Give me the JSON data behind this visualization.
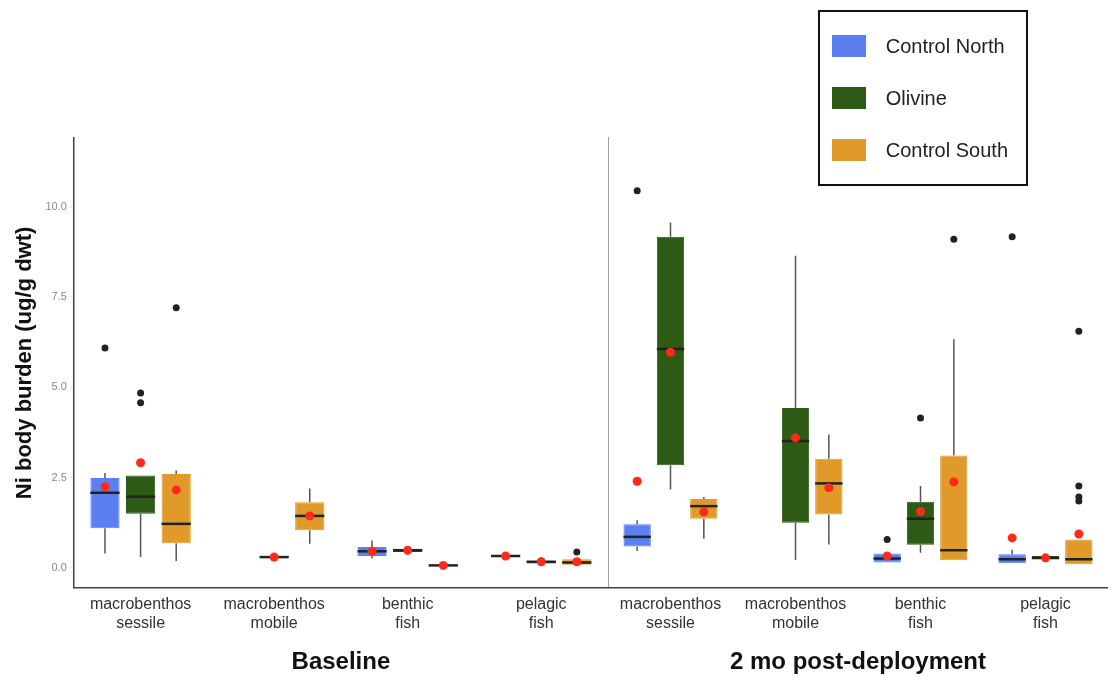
{
  "chart_data": [
    {
      "type": "box",
      "xlabel": "Baseline",
      "ylabel": "Ni body burden (ug/g dwt)",
      "categories": [
        "macrobenthos sessile",
        "macrobenthos mobile",
        "benthic fish",
        "pelagic fish"
      ],
      "ylim": [
        -0.55,
        11.9
      ],
      "yticks": [
        {
          "value": 0,
          "label": "0.0"
        },
        2.5,
        {
          "value": 5,
          "label": "5.0"
        },
        7.5,
        {
          "value": 10,
          "label": "10.0"
        }
      ],
      "grid": false,
      "series": [
        {
          "color": "#5b7ff0",
          "boxes": [
            {
              "low": 0.4,
              "q1": 1.1,
              "median": 2.08,
              "q3": 2.49,
              "high": 2.63,
              "mean": 2.25,
              "outliers": [
                6.09
              ]
            },
            null,
            {
              "low": 0.26,
              "q1": 0.33,
              "median": 0.46,
              "q3": 0.58,
              "high": 0.76,
              "mean": 0.46
            },
            {
              "low": 0.3,
              "q1": 0.3,
              "median": 0.33,
              "q3": 0.35,
              "high": 0.36,
              "mean": 0.33
            }
          ]
        },
        {
          "color": "#2d5a14",
          "boxes": [
            {
              "low": 0.3,
              "q1": 1.5,
              "median": 1.97,
              "q3": 2.56,
              "high": 2.56,
              "mean": 2.91,
              "outliers": [
                4.84,
                4.57
              ]
            },
            {
              "low": 0.3,
              "q1": 0.3,
              "median": 0.3,
              "q3": 0.31,
              "high": 0.31,
              "mean": 0.3
            },
            {
              "low": 0.44,
              "q1": 0.44,
              "median": 0.49,
              "q3": 0.53,
              "high": 0.53,
              "mean": 0.49
            },
            {
              "low": 0.12,
              "q1": 0.12,
              "median": 0.17,
              "q3": 0.2,
              "high": 0.3,
              "mean": 0.17
            }
          ]
        },
        {
          "color": "#e09a2a",
          "boxes": [
            {
              "low": 0.19,
              "q1": 0.68,
              "median": 1.22,
              "q3": 2.6,
              "high": 2.7,
              "mean": 2.16,
              "outliers": [
                7.2
              ]
            },
            {
              "low": 0.67,
              "q1": 1.04,
              "median": 1.44,
              "q3": 1.82,
              "high": 2.2,
              "mean": 1.44
            },
            {
              "low": 0.05,
              "q1": 0.05,
              "median": 0.07,
              "q3": 0.08,
              "high": 0.08,
              "mean": 0.07
            },
            {
              "low": 0.09,
              "q1": 0.09,
              "median": 0.15,
              "q3": 0.24,
              "high": 0.24,
              "mean": 0.17,
              "outliers": [
                0.44
              ]
            }
          ]
        }
      ]
    },
    {
      "type": "box",
      "xlabel": "2 mo post-deployment",
      "categories": [
        "macrobenthos sessile",
        "macrobenthos mobile",
        "benthic fish",
        "pelagic fish"
      ],
      "ylim": [
        -0.55,
        11.9
      ],
      "tick_labels": "x",
      "grid": false,
      "legend": "top right",
      "series": [
        {
          "name": "Control North",
          "color": "#5b7ff0",
          "boxes": [
            {
              "low": 0.47,
              "q1": 0.59,
              "median": 0.86,
              "q3": 1.21,
              "high": 1.32,
              "mean": 2.4,
              "outliers": [
                10.44
              ]
            },
            null,
            {
              "low": 0.15,
              "q1": 0.15,
              "median": 0.26,
              "q3": 0.4,
              "high": 0.4,
              "mean": 0.33,
              "outliers": [
                0.79
              ]
            },
            {
              "low": 0.13,
              "q1": 0.13,
              "median": 0.24,
              "q3": 0.38,
              "high": 0.5,
              "mean": 0.83,
              "outliers": [
                9.17
              ]
            }
          ]
        },
        {
          "name": "Olivine",
          "color": "#2d5a14",
          "boxes": [
            {
              "low": 2.17,
              "q1": 2.84,
              "median": 6.06,
              "q3": 9.17,
              "high": 9.56,
              "mean": 5.97
            },
            {
              "low": 0.22,
              "q1": 1.25,
              "median": 3.51,
              "q3": 4.43,
              "high": 8.64,
              "mean": 3.6
            },
            {
              "low": 0.42,
              "q1": 0.64,
              "median": 1.36,
              "q3": 1.83,
              "high": 2.27,
              "mean": 1.56,
              "outliers": [
                4.15
              ]
            },
            {
              "low": 0.23,
              "q1": 0.23,
              "median": 0.28,
              "q3": 0.33,
              "high": 0.33,
              "mean": 0.28
            }
          ]
        },
        {
          "name": "Control South",
          "color": "#e09a2a",
          "boxes": [
            {
              "low": 0.81,
              "q1": 1.36,
              "median": 1.71,
              "q3": 1.91,
              "high": 1.96,
              "mean": 1.55
            },
            {
              "low": 0.65,
              "q1": 1.48,
              "median": 2.34,
              "q3": 3.02,
              "high": 3.69,
              "mean": 2.22
            },
            {
              "low": 0.21,
              "q1": 0.21,
              "median": 0.49,
              "q3": 3.11,
              "high": 6.33,
              "mean": 2.38,
              "outliers": [
                9.1
              ]
            },
            {
              "low": 0.1,
              "q1": 0.1,
              "median": 0.24,
              "q3": 0.79,
              "high": 0.79,
              "mean": 0.94,
              "outliers": [
                6.55,
                2.27,
                1.96,
                1.85
              ]
            }
          ]
        }
      ]
    }
  ]
}
